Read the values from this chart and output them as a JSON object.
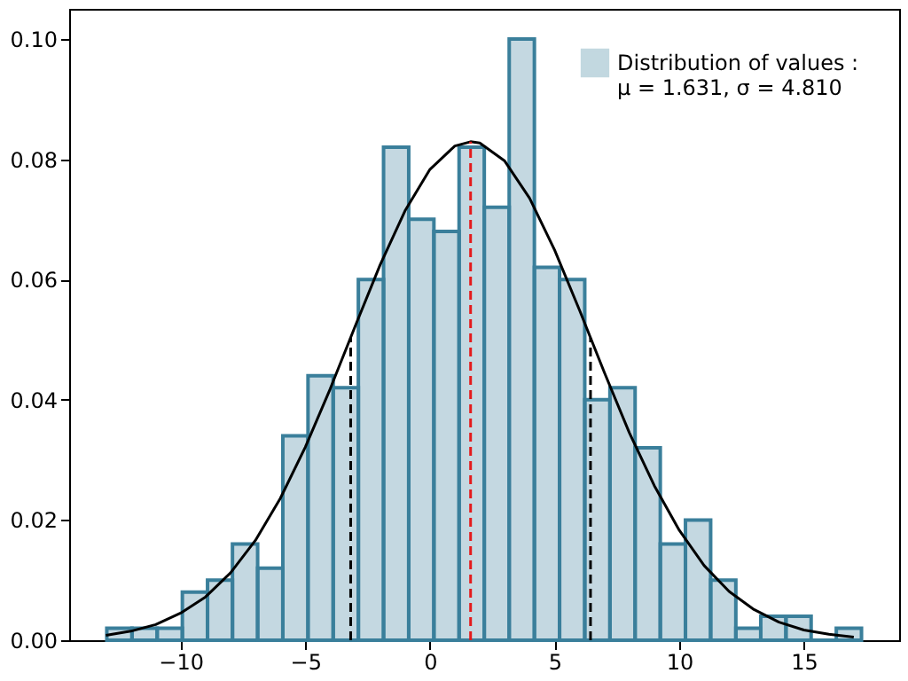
{
  "chart_data": {
    "type": "histogram",
    "bins": [
      -12.96,
      -11.95,
      -10.94,
      -9.93,
      -8.92,
      -7.92,
      -6.91,
      -5.9,
      -4.89,
      -3.88,
      -2.87,
      -1.86,
      -0.85,
      0.16,
      1.17,
      2.18,
      3.18,
      4.19,
      5.2,
      6.21,
      7.22,
      8.23,
      9.24,
      10.25,
      11.26,
      12.27,
      13.27,
      14.28,
      15.29,
      16.3,
      17.31
    ],
    "series": [
      {
        "name": "Distribution of values :\nμ = 1.631, σ = 4.810",
        "color": "#3a7f9b",
        "values": [
          0.002,
          0.002,
          0.002,
          0.008,
          0.01,
          0.016,
          0.012,
          0.034,
          0.044,
          0.042,
          0.06,
          0.082,
          0.07,
          0.068,
          0.082,
          0.072,
          0.1,
          0.062,
          0.06,
          0.04,
          0.042,
          0.032,
          0.016,
          0.02,
          0.01,
          0.002,
          0.004,
          0.004,
          0.0,
          0.002
        ]
      },
      {
        "type": "line",
        "color": "#000000",
        "line_style": "solid",
        "x": [
          -13,
          -12,
          -11,
          -10,
          -9,
          -8,
          -7,
          -6,
          -5,
          -4,
          -3,
          -2,
          -1,
          0,
          1,
          1.631,
          2,
          3,
          4,
          5,
          6,
          7,
          8,
          9,
          10,
          11,
          12,
          13,
          14,
          15,
          16,
          17
        ],
        "values": [
          0.0008,
          0.0015,
          0.0026,
          0.0045,
          0.0072,
          0.0112,
          0.0166,
          0.0236,
          0.0321,
          0.0418,
          0.0522,
          0.0624,
          0.0714,
          0.0783,
          0.0822,
          0.0829,
          0.0827,
          0.0797,
          0.0735,
          0.0649,
          0.0549,
          0.0445,
          0.0345,
          0.0257,
          0.0183,
          0.0124,
          0.0081,
          0.0051,
          0.003,
          0.0017,
          0.001,
          0.0005
        ]
      },
      {
        "type": "line",
        "color": "#e41a1c",
        "line_style": "dashed",
        "x": [
          1.631,
          1.631
        ],
        "values": [
          0,
          0.0829
        ]
      },
      {
        "type": "line",
        "color": "#000000",
        "line_style": "dashed",
        "x": [
          -3.179,
          -3.179
        ],
        "values": [
          0,
          0.0503
        ]
      },
      {
        "type": "line",
        "color": "#000000",
        "line_style": "dashed",
        "x": [
          6.441,
          6.441
        ],
        "values": [
          0,
          0.0503
        ]
      }
    ],
    "xlim": [
      -14.47,
      18.82
    ],
    "xticks": [
      {
        "value": -10,
        "label": "−10"
      },
      {
        "value": -5,
        "label": "−5"
      },
      0,
      5,
      10,
      15
    ],
    "ylim": [
      0,
      0.105
    ],
    "yticks": [
      {
        "value": 0,
        "label": "0.00"
      },
      {
        "value": 0.02,
        "label": "0.02"
      },
      {
        "value": 0.04,
        "label": "0.04"
      },
      {
        "value": 0.06,
        "label": "0.06"
      },
      {
        "value": 0.08,
        "label": "0.08"
      },
      {
        "value": 0.1,
        "label": "0.10"
      }
    ],
    "grid": false,
    "legend": "top right",
    "marker": "none"
  }
}
